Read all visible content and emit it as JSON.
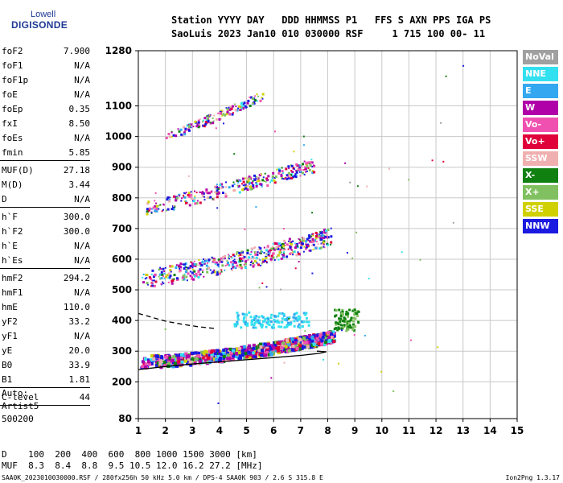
{
  "logo": {
    "top": "Lowell",
    "main": "DIGISONDE"
  },
  "header": {
    "line1": "Station YYYY DAY   DDD HHMMSS P1   FFS S AXN PPS IGA PS",
    "line2": "SaoLuis 2023 Jan10 010 030000 RSF     1 715 100 00- 11"
  },
  "params": [
    {
      "k": "foF2",
      "v": "7.900"
    },
    {
      "k": "foF1",
      "v": "N/A"
    },
    {
      "k": "foF1p",
      "v": "N/A"
    },
    {
      "k": "foE",
      "v": "N/A"
    },
    {
      "k": "foEp",
      "v": "0.35"
    },
    {
      "k": "fxI",
      "v": "8.50"
    },
    {
      "k": "foEs",
      "v": "N/A"
    },
    {
      "k": "fmin",
      "v": "5.85"
    },
    {
      "k": "MUF(D)",
      "v": "27.18"
    },
    {
      "k": "M(D)",
      "v": "3.44"
    },
    {
      "k": "D",
      "v": "N/A"
    },
    {
      "k": "h`F",
      "v": "300.0"
    },
    {
      "k": "h`F2",
      "v": "300.0"
    },
    {
      "k": "h`E",
      "v": "N/A"
    },
    {
      "k": "h`Es",
      "v": "N/A"
    },
    {
      "k": "hmF2",
      "v": "294.2"
    },
    {
      "k": "hmF1",
      "v": "N/A"
    },
    {
      "k": "hmE",
      "v": "110.0"
    },
    {
      "k": "yF2",
      "v": "33.2"
    },
    {
      "k": "yF1",
      "v": "N/A"
    },
    {
      "k": "yE",
      "v": "20.0"
    },
    {
      "k": "B0",
      "v": "33.9"
    },
    {
      "k": "B1",
      "v": "1.81"
    },
    {
      "k": "C-level",
      "v": "44"
    }
  ],
  "auto": {
    "line1": "Auto:",
    "line2": "Artist5",
    "line3": "500200"
  },
  "bottom_table": {
    "row1": "D    100  200  400  600  800 1000 1500 3000 [km]",
    "row2": "MUF  8.3  8.4  8.8  9.5 10.5 12.0 16.2 27.2 [MHz]"
  },
  "footer": {
    "left": "SAA0K_2023010030000.RSF / 280fx256h 50 kHz 5.0 km / DPS-4 SAA0K 903 / 2.6 S 315.8 E",
    "right": "Ion2Png 1.3.17"
  },
  "legend": [
    {
      "label": "NoVal",
      "color": "#a0a0a0"
    },
    {
      "label": "NNE",
      "color": "#33e0f0"
    },
    {
      "label": "E",
      "color": "#33a8f0"
    },
    {
      "label": "W",
      "color": "#b000a8"
    },
    {
      "label": "Vo-",
      "color": "#f050b0"
    },
    {
      "label": "Vo+",
      "color": "#e0003a"
    },
    {
      "label": "SSW",
      "color": "#f0b0b0"
    },
    {
      "label": "X-",
      "color": "#108010"
    },
    {
      "label": "X+",
      "color": "#80c060"
    },
    {
      "label": "SSE",
      "color": "#d0d000"
    },
    {
      "label": "NNW",
      "color": "#1a1ae0"
    }
  ],
  "chart_data": {
    "type": "scatter",
    "title": "",
    "xlabel": "",
    "ylabel": "",
    "xlim": [
      1,
      15
    ],
    "ylim": [
      80,
      1280
    ],
    "x_ticks": [
      "1",
      "2",
      "3",
      "4",
      "5",
      "6",
      "7",
      "8",
      "9",
      "10",
      "11",
      "12",
      "13",
      "14",
      "15"
    ],
    "y_ticks": [
      {
        "label": "80",
        "value": 80
      },
      {
        "label": "200",
        "value": 200
      },
      {
        "label": "300",
        "value": 300
      },
      {
        "label": "400",
        "value": 400
      },
      {
        "label": "500",
        "value": 500
      },
      {
        "label": "600",
        "value": 600
      },
      {
        "label": "700",
        "value": 700
      },
      {
        "label": "800",
        "value": 800
      },
      {
        "label": "900",
        "value": 900
      },
      {
        "label": "1000",
        "value": 1000
      },
      {
        "label": "1100",
        "value": 1100
      },
      {
        "label": "1280",
        "value": 1280
      }
    ],
    "grid": true,
    "legend_position": "right",
    "profile_solid": [
      [
        1.0,
        240
      ],
      [
        2.0,
        250
      ],
      [
        3.0,
        258
      ],
      [
        4.0,
        265
      ],
      [
        5.0,
        272
      ],
      [
        6.0,
        279
      ],
      [
        7.0,
        286
      ],
      [
        7.7,
        293
      ],
      [
        7.95,
        298
      ],
      [
        7.6,
        300
      ]
    ],
    "profile_dashed": [
      [
        1.0,
        423
      ],
      [
        2.0,
        398
      ],
      [
        2.6,
        388
      ],
      [
        3.2,
        380
      ],
      [
        3.8,
        374
      ]
    ],
    "echo_traces": [
      {
        "name": "F-trace 1st hop",
        "x0": 1.05,
        "x1": 8.2,
        "h0": 262,
        "h1": 345,
        "exp": 1.6,
        "spread": 40,
        "n": 900
      },
      {
        "name": "F-trace 2nd hop",
        "x0": 1.1,
        "x1": 8.1,
        "h0": 530,
        "h1": 665,
        "exp": 1.3,
        "spread": 60,
        "n": 520
      },
      {
        "name": "F-trace 3rd hop",
        "x0": 1.2,
        "x1": 7.5,
        "h0": 760,
        "h1": 900,
        "exp": 1.1,
        "spread": 45,
        "n": 320
      },
      {
        "name": "F-trace 4th hop",
        "x0": 2.0,
        "x1": 5.6,
        "h0": 990,
        "h1": 1130,
        "exp": 1.0,
        "spread": 30,
        "n": 140
      }
    ]
  }
}
